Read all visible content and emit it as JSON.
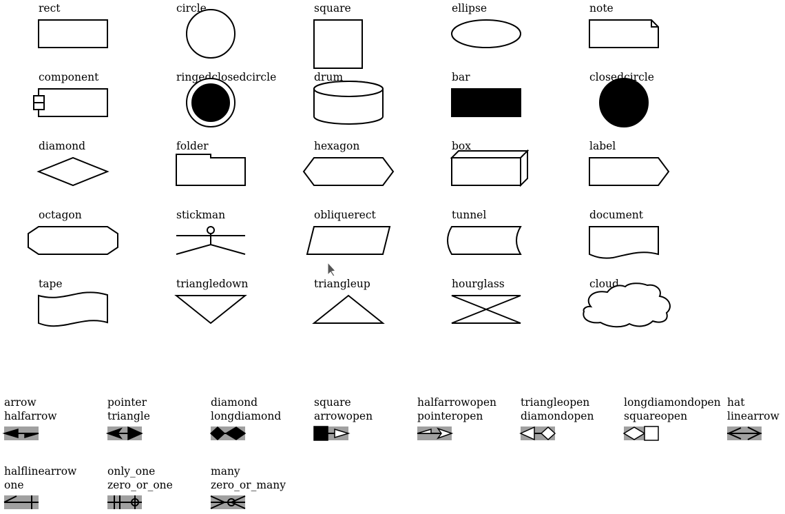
{
  "shapes": [
    {
      "name": "rect",
      "label": "rect"
    },
    {
      "name": "circle",
      "label": "circle"
    },
    {
      "name": "square",
      "label": "square"
    },
    {
      "name": "ellipse",
      "label": "ellipse"
    },
    {
      "name": "note",
      "label": "note"
    },
    {
      "name": "component",
      "label": "component"
    },
    {
      "name": "ringedclosedcircle",
      "label": "ringedclosedcircle"
    },
    {
      "name": "drum",
      "label": "drum"
    },
    {
      "name": "bar",
      "label": "bar"
    },
    {
      "name": "closedcircle",
      "label": "closedcircle"
    },
    {
      "name": "diamond",
      "label": "diamond"
    },
    {
      "name": "folder",
      "label": "folder"
    },
    {
      "name": "hexagon",
      "label": "hexagon"
    },
    {
      "name": "box",
      "label": "box"
    },
    {
      "name": "label",
      "label": "label"
    },
    {
      "name": "octagon",
      "label": "octagon"
    },
    {
      "name": "stickman",
      "label": "stickman"
    },
    {
      "name": "obliquerect",
      "label": "obliquerect"
    },
    {
      "name": "tunnel",
      "label": "tunnel"
    },
    {
      "name": "document",
      "label": "document"
    },
    {
      "name": "tape",
      "label": "tape"
    },
    {
      "name": "triangledown",
      "label": "triangledown"
    },
    {
      "name": "triangleup",
      "label": "triangleup"
    },
    {
      "name": "hourglass",
      "label": "hourglass"
    },
    {
      "name": "cloud",
      "label": "cloud"
    }
  ],
  "arrows": [
    {
      "name": "arrow-halfarrow",
      "line1": "arrow",
      "line2": "halfarrow"
    },
    {
      "name": "pointer-triangle",
      "line1": "pointer",
      "line2": "triangle"
    },
    {
      "name": "diamond-longdiamond",
      "line1": "diamond",
      "line2": "longdiamond"
    },
    {
      "name": "square-arrowopen",
      "line1": "square",
      "line2": "arrowopen"
    },
    {
      "name": "halfarrowopen-pointeropen",
      "line1": "halfarrowopen",
      "line2": "pointeropen"
    },
    {
      "name": "triangleopen-diamondopen",
      "line1": "triangleopen",
      "line2": "diamondopen"
    },
    {
      "name": "longdiamondopen-squareopen",
      "line1": "longdiamondopen",
      "line2": "squareopen"
    },
    {
      "name": "hat-linearrow",
      "line1": "hat",
      "line2": "linearrow"
    },
    {
      "name": "halflinearrow-one",
      "line1": "halflinearrow",
      "line2": "one"
    },
    {
      "name": "only_one-zero_or_one",
      "line1": "only_one",
      "line2": "zero_or_one"
    },
    {
      "name": "many-zero_or_many",
      "line1": "many",
      "line2": "zero_or_many"
    }
  ]
}
